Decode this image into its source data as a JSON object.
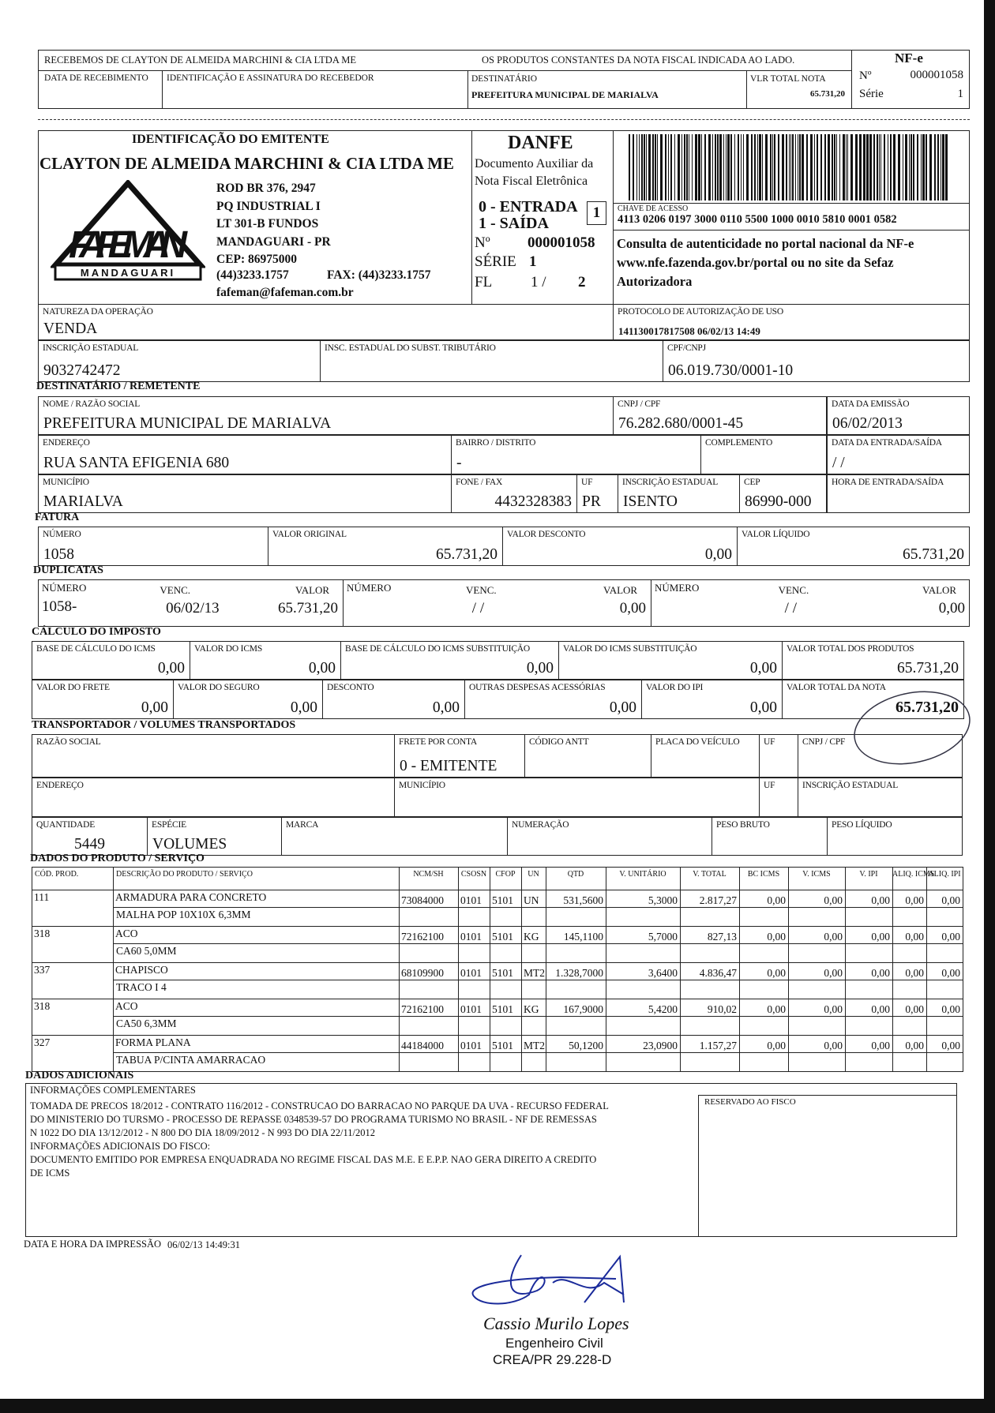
{
  "receipt": {
    "received_from": "RECEBEMOS DE CLAYTON DE ALMEIDA MARCHINI & CIA LTDA ME",
    "products_note": "OS PRODUTOS CONSTANTES DA NOTA FISCAL INDICADA AO LADO.",
    "date_label": "DATA DE RECEBIMENTO",
    "signature_label": "IDENTIFICAÇÃO E ASSINATURA DO RECEBEDOR",
    "dest_label": "DESTINATÁRIO",
    "dest_value": "PREFEITURA MUNICIPAL DE MARIALVA",
    "total_label": "VLR TOTAL NOTA",
    "total_value": "65.731,20",
    "nfe_title": "NF-e",
    "number_label": "Nº",
    "number": "000001058",
    "serie_label": "Série",
    "serie": "1"
  },
  "emitente": {
    "section_label": "IDENTIFICAÇÃO DO EMITENTE",
    "name": "CLAYTON DE ALMEIDA MARCHINI & CIA LTDA ME",
    "address_lines": [
      "ROD BR 376, 2947",
      "PQ INDUSTRIAL I",
      "LT 301-B FUNDOS",
      "MANDAGUARI - PR",
      "CEP: 86975000"
    ],
    "phone": "(44)3233.1757",
    "fax": "FAX: (44)3233.1757",
    "email": "fafeman@fafeman.com.br",
    "logo_text": "FAFEMAN",
    "logo_sub": "MANDAGUARI"
  },
  "danfe": {
    "title": "DANFE",
    "subtitle_1": "Documento Auxiliar da",
    "subtitle_2": "Nota Fiscal Eletrônica",
    "entrada": "0 - ENTRADA",
    "saida": "1 - SAÍDA",
    "type_value": "1",
    "number_label": "Nº",
    "number": "000001058",
    "serie_label": "SÉRIE",
    "serie": "1",
    "fl_label": "FL",
    "fl": "1 /",
    "fl_total": "2"
  },
  "access": {
    "key_label": "CHAVE DE ACESSO",
    "key": "4113 0206 0197 3000 0110 5500 1000 0010 5810 0001 0582",
    "consult_1": "Consulta de autenticidade no portal nacional da NF-e",
    "consult_2": "www.nfe.fazenda.gov.br/portal ou no site da Sefaz",
    "consult_3": "Autorizadora"
  },
  "operation": {
    "natureza_label": "NATUREZA DA OPERAÇÃO",
    "natureza": "VENDA",
    "protocolo_label": "PROTOCOLO DE AUTORIZAÇÃO DE USO",
    "protocolo": "141130017817508 06/02/13 14:49",
    "ie_label": "INSCRIÇÃO ESTADUAL",
    "ie": "9032742472",
    "ie_st_label": "INSC. ESTADUAL DO SUBST. TRIBUTÁRIO",
    "ie_st": "",
    "cnpj_label": "CPF/CNPJ",
    "cnpj": "06.019.730/0001-10"
  },
  "destinatario": {
    "section_label": "DESTINATÁRIO / REMETENTE",
    "nome_label": "NOME / RAZÃO SOCIAL",
    "nome": "PREFEITURA MUNICIPAL DE MARIALVA",
    "cnpj_label": "CNPJ / CPF",
    "cnpj": "76.282.680/0001-45",
    "emissao_label": "DATA DA EMISSÃO",
    "emissao": "06/02/2013",
    "endereco_label": "ENDEREÇO",
    "endereco": "RUA SANTA EFIGENIA 680",
    "bairro_label": "BAIRRO / DISTRITO",
    "bairro": "-",
    "complemento_label": "COMPLEMENTO",
    "complemento": "",
    "entrada_saida_label": "DATA DA ENTRADA/SAÍDA",
    "entrada_saida": "/ /",
    "municipio_label": "MUNICÍPIO",
    "municipio": "MARIALVA",
    "fone_label": "FONE / FAX",
    "fone": "4432328383",
    "uf_label": "UF",
    "uf": "PR",
    "ie_label": "INSCRIÇÃO ESTADUAL",
    "ie": "ISENTO",
    "cep_label": "CEP",
    "cep": "86990-000",
    "hora_label": "HORA DE ENTRADA/SAÍDA",
    "hora": ""
  },
  "fatura": {
    "section_label": "FATURA",
    "numero_label": "NÚMERO",
    "numero": "1058",
    "original_label": "VALOR ORIGINAL",
    "original": "65.731,20",
    "desconto_label": "VALOR DESCONTO",
    "desconto": "0,00",
    "liquido_label": "VALOR LÍQUIDO",
    "liquido": "65.731,20"
  },
  "duplicatas": {
    "section_label": "DUPLICATAS",
    "numero_label": "NÚMERO",
    "venc_label": "VENC.",
    "valor_label": "VALOR",
    "items": [
      {
        "numero": "1058-",
        "venc": "06/02/13",
        "valor": "65.731,20"
      },
      {
        "numero": "",
        "venc": "/ /",
        "valor": "0,00"
      },
      {
        "numero": "",
        "venc": "/ /",
        "valor": "0,00"
      }
    ]
  },
  "imposto": {
    "section_label": "CÁLCULO DO IMPOSTO",
    "bc_icms_label": "BASE DE CÁLCULO DO ICMS",
    "bc_icms": "0,00",
    "v_icms_label": "VALOR DO ICMS",
    "v_icms": "0,00",
    "bc_st_label": "BASE DE CÁLCULO DO ICMS SUBSTITUIÇÃO",
    "bc_st": "0,00",
    "v_st_label": "VALOR DO ICMS SUBSTITUIÇÃO",
    "v_st": "0,00",
    "v_prod_label": "VALOR TOTAL DOS PRODUTOS",
    "v_prod": "65.731,20",
    "frete_label": "VALOR DO FRETE",
    "frete": "0,00",
    "seguro_label": "VALOR DO SEGURO",
    "seguro": "0,00",
    "desconto_label": "DESCONTO",
    "desconto": "0,00",
    "outras_label": "OUTRAS DESPESAS ACESSÓRIAS",
    "outras": "0,00",
    "ipi_label": "VALOR DO IPI",
    "ipi": "0,00",
    "total_label": "VALOR TOTAL DA NOTA",
    "total": "65.731,20"
  },
  "transporte": {
    "section_label": "TRANSPORTADOR / VOLUMES TRANSPORTADOS",
    "razao_label": "RAZÃO SOCIAL",
    "razao": "",
    "frete_label": "FRETE POR CONTA",
    "frete": "0 - EMITENTE",
    "antt_label": "CÓDIGO ANTT",
    "antt": "",
    "placa_label": "PLACA DO VEÍCULO",
    "placa": "",
    "uf_label": "UF",
    "uf": "",
    "cnpj_label": "CNPJ / CPF",
    "cnpj": "",
    "endereco_label": "ENDEREÇO",
    "endereco": "",
    "municipio_label": "MUNICÍPIO",
    "municipio": "",
    "uf2_label": "UF",
    "uf2": "",
    "ie_label": "INSCRIÇÃO ESTADUAL",
    "ie": "",
    "quantidade_label": "QUANTIDADE",
    "quantidade": "5449",
    "especie_label": "ESPÉCIE",
    "especie": "VOLUMES",
    "marca_label": "MARCA",
    "marca": "",
    "numeracao_label": "NUMERAÇÃO",
    "numeracao": "",
    "peso_bruto_label": "PESO BRUTO",
    "peso_bruto": "",
    "peso_liquido_label": "PESO LÍQUIDO",
    "peso_liquido": ""
  },
  "produtos": {
    "section_label": "DADOS DO PRODUTO / SERVIÇO",
    "columns": [
      "CÓD. PROD.",
      "DESCRIÇÃO DO PRODUTO / SERVIÇO",
      "NCM/SH",
      "CSOSN",
      "CFOP",
      "UN",
      "QTD",
      "V. UNITÁRIO",
      "V. TOTAL",
      "BC ICMS",
      "V. ICMS",
      "V. IPI",
      "ALIQ. ICMS",
      "ALIQ. IPI"
    ],
    "items": [
      {
        "cod": "111",
        "desc": "ARMADURA PARA CONCRETO",
        "desc2": "MALHA POP 10X10X 6,3MM",
        "ncm": "73084000",
        "csosn": "0101",
        "cfop": "5101",
        "un": "UN",
        "qtd": "531,5600",
        "vunit": "5,3000",
        "vtotal": "2.817,27",
        "bc": "0,00",
        "vicms": "0,00",
        "vipi": "0,00",
        "aicms": "0,00",
        "aipi": "0,00"
      },
      {
        "cod": "318",
        "desc": "ACO",
        "desc2": "CA60 5,0MM",
        "ncm": "72162100",
        "csosn": "0101",
        "cfop": "5101",
        "un": "KG",
        "qtd": "145,1100",
        "vunit": "5,7000",
        "vtotal": "827,13",
        "bc": "0,00",
        "vicms": "0,00",
        "vipi": "0,00",
        "aicms": "0,00",
        "aipi": "0,00"
      },
      {
        "cod": "337",
        "desc": "CHAPISCO",
        "desc2": "TRACO I 4",
        "ncm": "68109900",
        "csosn": "0101",
        "cfop": "5101",
        "un": "MT2",
        "qtd": "1.328,7000",
        "vunit": "3,6400",
        "vtotal": "4.836,47",
        "bc": "0,00",
        "vicms": "0,00",
        "vipi": "0,00",
        "aicms": "0,00",
        "aipi": "0,00"
      },
      {
        "cod": "318",
        "desc": "ACO",
        "desc2": "CA50 6,3MM",
        "ncm": "72162100",
        "csosn": "0101",
        "cfop": "5101",
        "un": "KG",
        "qtd": "167,9000",
        "vunit": "5,4200",
        "vtotal": "910,02",
        "bc": "0,00",
        "vicms": "0,00",
        "vipi": "0,00",
        "aicms": "0,00",
        "aipi": "0,00"
      },
      {
        "cod": "327",
        "desc": "FORMA PLANA",
        "desc2": "TABUA P/CINTA AMARRACAO",
        "ncm": "44184000",
        "csosn": "0101",
        "cfop": "5101",
        "un": "MT2",
        "qtd": "50,1200",
        "vunit": "23,0900",
        "vtotal": "1.157,27",
        "bc": "0,00",
        "vicms": "0,00",
        "vipi": "0,00",
        "aicms": "0,00",
        "aipi": "0,00"
      }
    ]
  },
  "adicionais": {
    "section_label": "DADOS ADICIONAIS",
    "info_label": "INFORMAÇÕES COMPLEMENTARES",
    "lines": [
      "TOMADA DE PRECOS 18/2012 - CONTRATO 116/2012 - CONSTRUCAO DO BARRACAO NO PARQUE DA UVA - RECURSO FEDERAL",
      "DO MINISTERIO DO TURSMO - PROCESSO DE REPASSE 0348539-57 DO PROGRAMA TURISMO NO BRASIL - NF DE REMESSAS",
      "N 1022 DO DIA 13/12/2012 - N 800 DO DIA 18/09/2012 - N 993 DO DIA 22/11/2012",
      "INFORMAÇÕES ADICIONAIS DO FISCO:",
      "DOCUMENTO EMITIDO POR EMPRESA ENQUADRADA NO REGIME FISCAL DAS M.E. E E.P.P. NAO GERA DIREITO A CREDITO",
      "DE ICMS"
    ],
    "fisco_label": "RESERVADO AO FISCO"
  },
  "impressao": {
    "label": "DATA E HORA DA IMPRESSÃO",
    "value": "06/02/13  14:49:31"
  },
  "signature": {
    "name": "Cassio Murilo Lopes",
    "title": "Engenheiro Civil",
    "crea": "CREA/PR 29.228-D"
  }
}
